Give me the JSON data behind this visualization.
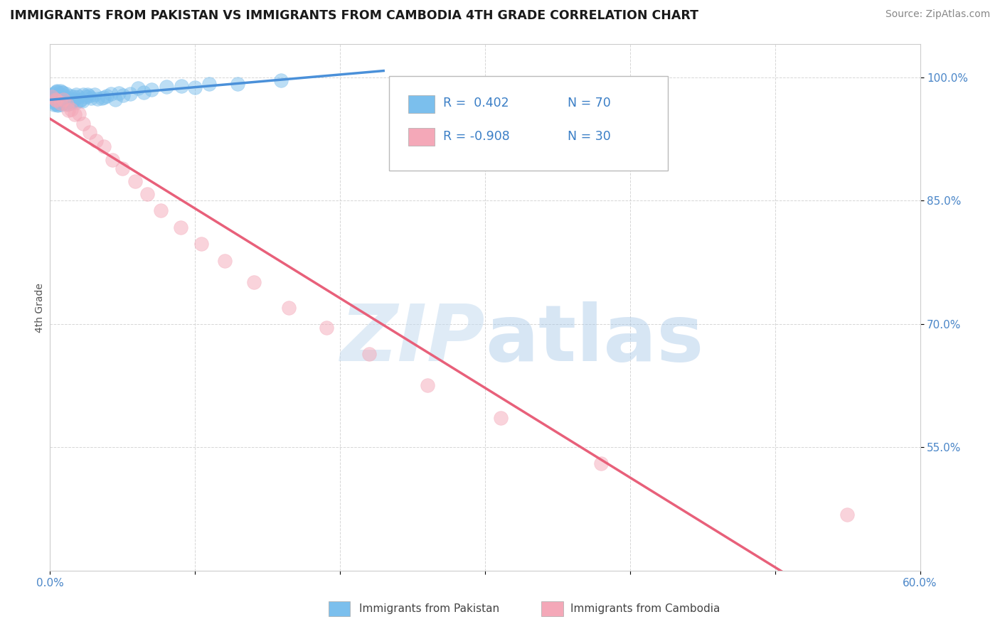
{
  "title": "IMMIGRANTS FROM PAKISTAN VS IMMIGRANTS FROM CAMBODIA 4TH GRADE CORRELATION CHART",
  "source": "Source: ZipAtlas.com",
  "ylabel": "4th Grade",
  "xlim": [
    0.0,
    0.6
  ],
  "ylim": [
    0.4,
    1.04
  ],
  "x_ticks": [
    0.0,
    0.1,
    0.2,
    0.3,
    0.4,
    0.5,
    0.6
  ],
  "x_tick_labels": [
    "0.0%",
    "",
    "",
    "",
    "",
    "",
    "60.0%"
  ],
  "y_ticks": [
    0.55,
    0.7,
    0.85,
    1.0
  ],
  "y_tick_labels": [
    "55.0%",
    "70.0%",
    "85.0%",
    "100.0%"
  ],
  "pakistan_color": "#7BBFED",
  "cambodia_color": "#F4A8B8",
  "pakistan_line_color": "#4A90D9",
  "cambodia_line_color": "#E8607A",
  "R_pakistan": 0.402,
  "N_pakistan": 70,
  "R_cambodia": -0.908,
  "N_cambodia": 30,
  "watermark_zip": "ZIP",
  "watermark_atlas": "atlas",
  "background_color": "#ffffff",
  "grid_color": "#cccccc",
  "pakistan_x": [
    0.001,
    0.002,
    0.002,
    0.003,
    0.003,
    0.003,
    0.004,
    0.004,
    0.004,
    0.005,
    0.005,
    0.005,
    0.006,
    0.006,
    0.006,
    0.007,
    0.007,
    0.007,
    0.008,
    0.008,
    0.008,
    0.009,
    0.009,
    0.009,
    0.01,
    0.01,
    0.011,
    0.011,
    0.012,
    0.012,
    0.013,
    0.013,
    0.014,
    0.015,
    0.016,
    0.017,
    0.018,
    0.019,
    0.02,
    0.021,
    0.022,
    0.023,
    0.025,
    0.027,
    0.029,
    0.031,
    0.033,
    0.035,
    0.037,
    0.04,
    0.042,
    0.045,
    0.048,
    0.05,
    0.055,
    0.06,
    0.065,
    0.07,
    0.08,
    0.09,
    0.1,
    0.11,
    0.13,
    0.16,
    0.02,
    0.025,
    0.015,
    0.008,
    0.004,
    0.002
  ],
  "pakistan_y": [
    0.975,
    0.97,
    0.98,
    0.972,
    0.978,
    0.965,
    0.975,
    0.982,
    0.968,
    0.971,
    0.978,
    0.983,
    0.972,
    0.967,
    0.975,
    0.97,
    0.976,
    0.983,
    0.968,
    0.974,
    0.981,
    0.969,
    0.975,
    0.982,
    0.97,
    0.977,
    0.972,
    0.979,
    0.968,
    0.975,
    0.971,
    0.978,
    0.974,
    0.97,
    0.977,
    0.972,
    0.975,
    0.969,
    0.976,
    0.972,
    0.975,
    0.979,
    0.976,
    0.972,
    0.975,
    0.978,
    0.974,
    0.977,
    0.973,
    0.976,
    0.978,
    0.975,
    0.978,
    0.981,
    0.979,
    0.982,
    0.984,
    0.986,
    0.988,
    0.99,
    0.991,
    0.992,
    0.994,
    0.995,
    0.974,
    0.976,
    0.972,
    0.979,
    0.981,
    0.973
  ],
  "cambodia_x": [
    0.001,
    0.003,
    0.005,
    0.007,
    0.009,
    0.011,
    0.013,
    0.015,
    0.017,
    0.02,
    0.023,
    0.027,
    0.032,
    0.037,
    0.043,
    0.05,
    0.058,
    0.067,
    0.077,
    0.09,
    0.105,
    0.12,
    0.14,
    0.165,
    0.19,
    0.22,
    0.26,
    0.31,
    0.38,
    0.55
  ],
  "cambodia_y": [
    0.978,
    0.975,
    0.972,
    0.968,
    0.972,
    0.965,
    0.96,
    0.958,
    0.955,
    0.95,
    0.942,
    0.935,
    0.925,
    0.915,
    0.9,
    0.888,
    0.873,
    0.858,
    0.84,
    0.82,
    0.798,
    0.775,
    0.75,
    0.722,
    0.695,
    0.663,
    0.627,
    0.585,
    0.53,
    0.47
  ],
  "legend_R_label1": "R =  0.402",
  "legend_N_label1": "N = 70",
  "legend_R_label2": "R = -0.908",
  "legend_N_label2": "N = 30"
}
